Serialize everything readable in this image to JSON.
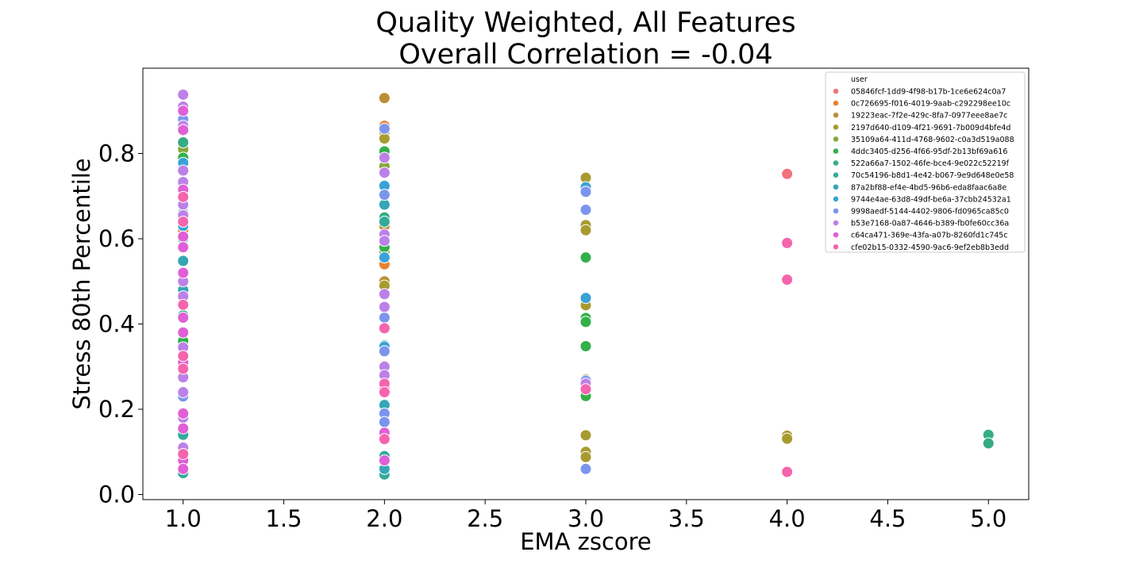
{
  "chart_data": {
    "type": "scatter",
    "title_lines": [
      "Quality Weighted, All Features",
      "Overall Correlation = -0.04"
    ],
    "xlabel": "EMA zscore",
    "ylabel": "Stress 80th Percentile",
    "xlim": [
      0.8,
      5.2
    ],
    "ylim": [
      -0.012,
      1.0
    ],
    "xticks": [
      1.0,
      1.5,
      2.0,
      2.5,
      3.0,
      3.5,
      4.0,
      4.5,
      5.0
    ],
    "xtick_labels": [
      "1.0",
      "1.5",
      "2.0",
      "2.5",
      "3.0",
      "3.5",
      "4.0",
      "4.5",
      "5.0"
    ],
    "yticks": [
      0.0,
      0.2,
      0.4,
      0.6,
      0.8
    ],
    "ytick_labels": [
      "0.0",
      "0.2",
      "0.4",
      "0.6",
      "0.8"
    ],
    "grid": false,
    "legend": {
      "title": "user",
      "placement": "top-right"
    },
    "series": [
      {
        "name": "05846fcf-1dd9-4f98-b17b-1ce6e624c0a7",
        "color": "#f0727e",
        "points": [
          [
            1.0,
            0.09
          ],
          [
            2.0,
            0.17
          ],
          [
            4.0,
            0.752
          ]
        ]
      },
      {
        "name": "0c726695-f016-4019-9aab-c292298ee10c",
        "color": "#e8812f",
        "points": [
          [
            1.0,
            0.62
          ],
          [
            2.0,
            0.865
          ],
          [
            2.0,
            0.54
          ]
        ]
      },
      {
        "name": "19223eac-7f2e-429c-8fa7-0977eee8ae7c",
        "color": "#b99036",
        "points": [
          [
            1.0,
            0.5
          ],
          [
            2.0,
            0.93
          ],
          [
            2.0,
            0.85
          ],
          [
            2.0,
            0.63
          ],
          [
            2.0,
            0.5
          ]
        ]
      },
      {
        "name": "2197d640-d109-4f21-9691-7b009d4bfe4d",
        "color": "#a79b30",
        "points": [
          [
            1.0,
            0.7
          ],
          [
            2.0,
            0.835
          ],
          [
            2.0,
            0.49
          ],
          [
            3.0,
            0.743
          ],
          [
            3.0,
            0.632
          ],
          [
            3.0,
            0.62
          ],
          [
            3.0,
            0.444
          ],
          [
            3.0,
            0.139
          ],
          [
            3.0,
            0.1
          ],
          [
            3.0,
            0.088
          ],
          [
            4.0,
            0.138
          ],
          [
            4.0,
            0.131
          ]
        ]
      },
      {
        "name": "35109a64-411d-4768-9602-c0a3d519a088",
        "color": "#86a73a",
        "points": [
          [
            1.0,
            0.81
          ],
          [
            2.0,
            0.77
          ],
          [
            2.0,
            0.57
          ],
          [
            3.0,
            0.27
          ]
        ]
      },
      {
        "name": "4ddc3405-d256-4f66-95df-2b13bf69a616",
        "color": "#33b04a",
        "points": [
          [
            1.0,
            0.79
          ],
          [
            1.0,
            0.36
          ],
          [
            2.0,
            0.805
          ],
          [
            2.0,
            0.58
          ],
          [
            3.0,
            0.556
          ],
          [
            3.0,
            0.414
          ],
          [
            3.0,
            0.405
          ],
          [
            3.0,
            0.348
          ],
          [
            3.0,
            0.231
          ]
        ]
      },
      {
        "name": "522a66a7-1502-46fe-bce4-9e022c52219f",
        "color": "#35ac83",
        "points": [
          [
            1.0,
            0.826
          ],
          [
            1.0,
            0.42
          ],
          [
            2.0,
            0.65
          ],
          [
            5.0,
            0.14
          ],
          [
            5.0,
            0.12
          ]
        ]
      },
      {
        "name": "70c54196-b8d1-4e42-b067-9e9d648e0e58",
        "color": "#33ab9a",
        "points": [
          [
            1.0,
            0.66
          ],
          [
            1.0,
            0.6
          ],
          [
            1.0,
            0.14
          ],
          [
            1.0,
            0.05
          ],
          [
            2.0,
            0.64
          ],
          [
            2.0,
            0.09
          ],
          [
            2.0,
            0.047
          ]
        ]
      },
      {
        "name": "87a2bf88-ef4e-4bd5-96b6-eda8faac6a8e",
        "color": "#36a6b4",
        "points": [
          [
            1.0,
            0.548
          ],
          [
            1.0,
            0.48
          ],
          [
            2.0,
            0.68
          ],
          [
            2.0,
            0.35
          ],
          [
            2.0,
            0.21
          ],
          [
            2.0,
            0.06
          ]
        ]
      },
      {
        "name": "9744e4ae-63d8-49df-be6a-37cbb24532a1",
        "color": "#3aa2d6",
        "points": [
          [
            1.0,
            0.778
          ],
          [
            1.0,
            0.63
          ],
          [
            1.0,
            0.3
          ],
          [
            2.0,
            0.724
          ],
          [
            2.0,
            0.556
          ],
          [
            2.0,
            0.347
          ],
          [
            3.0,
            0.721
          ],
          [
            3.0,
            0.461
          ]
        ]
      },
      {
        "name": "9998aedf-5144-4402-9806-fd0965ca85c0",
        "color": "#7c95ec",
        "points": [
          [
            1.0,
            0.88
          ],
          [
            1.0,
            0.23
          ],
          [
            2.0,
            0.858
          ],
          [
            2.0,
            0.703
          ],
          [
            2.0,
            0.415
          ],
          [
            2.0,
            0.336
          ],
          [
            2.0,
            0.19
          ],
          [
            2.0,
            0.17
          ],
          [
            3.0,
            0.71
          ],
          [
            3.0,
            0.668
          ],
          [
            3.0,
            0.267
          ],
          [
            3.0,
            0.06
          ]
        ]
      },
      {
        "name": "b53e7168-0a87-4646-b389-fb0fe60cc36a",
        "color": "#bc81e8",
        "points": [
          [
            1.0,
            0.938
          ],
          [
            1.0,
            0.91
          ],
          [
            1.0,
            0.865
          ],
          [
            1.0,
            0.76
          ],
          [
            1.0,
            0.733
          ],
          [
            1.0,
            0.68
          ],
          [
            1.0,
            0.655
          ],
          [
            1.0,
            0.5
          ],
          [
            1.0,
            0.465
          ],
          [
            1.0,
            0.345
          ],
          [
            1.0,
            0.275
          ],
          [
            1.0,
            0.24
          ],
          [
            1.0,
            0.18
          ],
          [
            1.0,
            0.11
          ],
          [
            2.0,
            0.79
          ],
          [
            2.0,
            0.755
          ],
          [
            2.0,
            0.61
          ],
          [
            2.0,
            0.595
          ],
          [
            2.0,
            0.47
          ],
          [
            2.0,
            0.44
          ],
          [
            2.0,
            0.3
          ],
          [
            2.0,
            0.28
          ],
          [
            3.0,
            0.26
          ]
        ]
      },
      {
        "name": "c64ca471-369e-43fa-a07b-8260fd1c745c",
        "color": "#e05fd6",
        "points": [
          [
            1.0,
            0.9
          ],
          [
            1.0,
            0.855
          ],
          [
            1.0,
            0.715
          ],
          [
            1.0,
            0.605
          ],
          [
            1.0,
            0.58
          ],
          [
            1.0,
            0.52
          ],
          [
            1.0,
            0.415
          ],
          [
            1.0,
            0.38
          ],
          [
            1.0,
            0.31
          ],
          [
            1.0,
            0.19
          ],
          [
            1.0,
            0.155
          ],
          [
            1.0,
            0.08
          ],
          [
            1.0,
            0.06
          ],
          [
            2.0,
            0.25
          ],
          [
            2.0,
            0.145
          ],
          [
            2.0,
            0.08
          ]
        ]
      },
      {
        "name": "cfe02b15-0332-4590-9ac6-9ef2eb8b3edd",
        "color": "#f465ae",
        "points": [
          [
            1.0,
            0.698
          ],
          [
            1.0,
            0.64
          ],
          [
            1.0,
            0.445
          ],
          [
            1.0,
            0.325
          ],
          [
            1.0,
            0.295
          ],
          [
            1.0,
            0.095
          ],
          [
            2.0,
            0.39
          ],
          [
            2.0,
            0.26
          ],
          [
            2.0,
            0.24
          ],
          [
            2.0,
            0.13
          ],
          [
            3.0,
            0.247
          ],
          [
            4.0,
            0.59
          ],
          [
            4.0,
            0.504
          ],
          [
            4.0,
            0.053
          ]
        ]
      }
    ]
  }
}
